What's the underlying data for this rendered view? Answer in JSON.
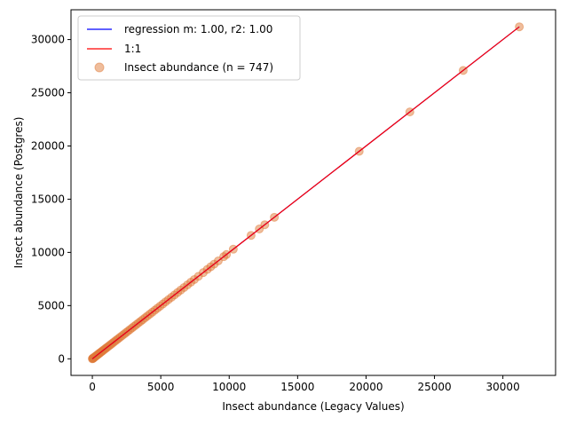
{
  "chart_data": {
    "type": "scatter",
    "title": "",
    "xlabel": "Insect abundance (Legacy Values)",
    "ylabel": "Insect abundance (Postgres)",
    "xlim": [
      -1560,
      33850
    ],
    "ylim": [
      -1560,
      32800
    ],
    "xticks": [
      0,
      5000,
      10000,
      15000,
      20000,
      25000,
      30000
    ],
    "yticks": [
      0,
      5000,
      10000,
      15000,
      20000,
      25000,
      30000
    ],
    "grid": false,
    "legend_position": "top-left",
    "series": [
      {
        "name": "regression m: 1.00, r2: 1.00",
        "kind": "line",
        "color": "#0000ff",
        "x": [
          0,
          31200
        ],
        "y": [
          0,
          31200
        ]
      },
      {
        "name": "1:1",
        "kind": "line",
        "color": "#ff0000",
        "x": [
          0,
          31200
        ],
        "y": [
          0,
          31200
        ]
      },
      {
        "name": "Insect abundance (n = 747)",
        "kind": "scatter",
        "color": "#e07b39",
        "alpha": 0.5,
        "x": [
          0,
          20,
          40,
          60,
          80,
          100,
          130,
          160,
          200,
          250,
          300,
          350,
          400,
          450,
          500,
          560,
          620,
          680,
          750,
          820,
          900,
          980,
          1060,
          1150,
          1250,
          1350,
          1450,
          1560,
          1680,
          1800,
          1920,
          2050,
          2180,
          2320,
          2460,
          2600,
          2750,
          2900,
          3050,
          3200,
          3360,
          3520,
          3680,
          3850,
          4020,
          4200,
          4380,
          4560,
          4750,
          4950,
          5150,
          5350,
          5560,
          5780,
          6000,
          6230,
          6460,
          6700,
          6950,
          7200,
          7450,
          7750,
          8100,
          8400,
          8650,
          8900,
          9200,
          9600,
          9800,
          10300,
          11600,
          12200,
          12600,
          13300,
          19500,
          23200,
          27100,
          31200
        ],
        "y": [
          0,
          20,
          40,
          60,
          80,
          100,
          130,
          160,
          200,
          250,
          300,
          350,
          400,
          450,
          500,
          560,
          620,
          680,
          750,
          820,
          900,
          980,
          1060,
          1150,
          1250,
          1350,
          1450,
          1560,
          1680,
          1800,
          1920,
          2050,
          2180,
          2320,
          2460,
          2600,
          2750,
          2900,
          3050,
          3200,
          3360,
          3520,
          3680,
          3850,
          4020,
          4200,
          4380,
          4560,
          4750,
          4950,
          5150,
          5350,
          5560,
          5780,
          6000,
          6230,
          6460,
          6700,
          6950,
          7200,
          7450,
          7750,
          8100,
          8400,
          8650,
          8900,
          9200,
          9600,
          9800,
          10300,
          11600,
          12200,
          12600,
          13300,
          19500,
          23200,
          27100,
          31200
        ]
      }
    ]
  }
}
